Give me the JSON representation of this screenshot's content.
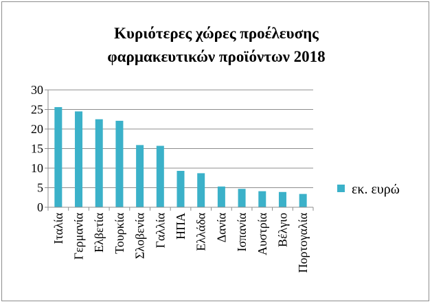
{
  "chart_data": {
    "type": "bar",
    "title_lines": [
      "Κυριότερες χώρες προέλευσης",
      "φαρμακευτικών προϊόντων 2018"
    ],
    "categories": [
      "Ιταλία",
      "Γερμανία",
      "Ελβετία",
      "Τουρκία",
      "Σλοβενία",
      "Γαλλία",
      "ΗΠΑ",
      "Ελλάδα",
      "Δανία",
      "Ισπανία",
      "Αυστρία",
      "Βέλγιο",
      "Πορτογαλία"
    ],
    "series": [
      {
        "name": "εκ. ευρώ",
        "values": [
          25.6,
          24.5,
          22.5,
          22.1,
          15.9,
          15.7,
          9.3,
          8.7,
          5.3,
          4.7,
          4.1,
          3.9,
          3.4
        ],
        "color": "#3bb1c9"
      }
    ],
    "ylim": [
      0,
      30
    ],
    "yticks": [
      0,
      5,
      10,
      15,
      20,
      25,
      30
    ],
    "gridlines": true,
    "legend_position": "right"
  }
}
